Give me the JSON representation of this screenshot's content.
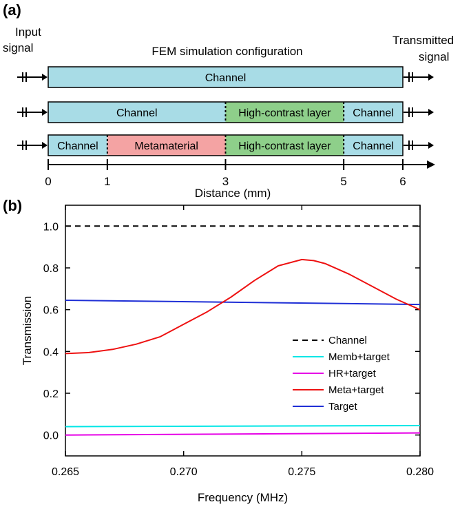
{
  "panel_a": {
    "panel_label": "(a)",
    "input_label_line1": "Input",
    "input_label_line2": "signal",
    "output_label_line1": "Transmitted",
    "output_label_line2": "signal",
    "config_title": "FEM simulation configuration",
    "rows": [
      {
        "segments": [
          {
            "label": "Channel",
            "start": 0,
            "end": 6,
            "color": "#a8dce6"
          }
        ]
      },
      {
        "segments": [
          {
            "label": "Channel",
            "start": 0,
            "end": 3,
            "color": "#a8dce6"
          },
          {
            "label": "High-contrast layer",
            "start": 3,
            "end": 5,
            "color": "#8ecf8a"
          },
          {
            "label": "Channel",
            "start": 5,
            "end": 6,
            "color": "#a8dce6"
          }
        ]
      },
      {
        "segments": [
          {
            "label": "Channel",
            "start": 0,
            "end": 1,
            "color": "#a8dce6"
          },
          {
            "label": "Metamaterial",
            "start": 1,
            "end": 3,
            "color": "#f4a3a3"
          },
          {
            "label": "High-contrast layer",
            "start": 3,
            "end": 5,
            "color": "#8ecf8a"
          },
          {
            "label": "Channel",
            "start": 5,
            "end": 6,
            "color": "#a8dce6"
          }
        ]
      }
    ],
    "distance_ticks": [
      "0",
      "1",
      "3",
      "5",
      "6"
    ],
    "distance_label": "Distance (mm)"
  },
  "panel_b": {
    "panel_label": "(b)"
  },
  "chart_data": {
    "type": "line",
    "xlabel": "Frequency (MHz)",
    "ylabel": "Transmission",
    "xlim": [
      0.265,
      0.28
    ],
    "ylim": [
      -0.1,
      1.1
    ],
    "xticks": [
      "0.265",
      "0.270",
      "0.275",
      "0.280"
    ],
    "yticks": [
      "0.0",
      "0.2",
      "0.4",
      "0.6",
      "0.8",
      "1.0"
    ],
    "legend_position": "lower-right",
    "series": [
      {
        "name": "Channel",
        "color": "#000000",
        "dash": true,
        "x": [
          0.265,
          0.28
        ],
        "y": [
          1.0,
          1.0
        ]
      },
      {
        "name": "Memb+target",
        "color": "#00e6e6",
        "x": [
          0.265,
          0.28
        ],
        "y": [
          0.04,
          0.045
        ]
      },
      {
        "name": "HR+target",
        "color": "#e600e6",
        "x": [
          0.265,
          0.28
        ],
        "y": [
          0.0,
          0.01
        ]
      },
      {
        "name": "Meta+target",
        "color": "#ee1111",
        "x": [
          0.265,
          0.266,
          0.267,
          0.268,
          0.269,
          0.27,
          0.271,
          0.272,
          0.273,
          0.274,
          0.275,
          0.2755,
          0.276,
          0.277,
          0.278,
          0.279,
          0.28
        ],
        "y": [
          0.39,
          0.395,
          0.41,
          0.435,
          0.47,
          0.53,
          0.59,
          0.66,
          0.74,
          0.81,
          0.84,
          0.835,
          0.82,
          0.77,
          0.71,
          0.65,
          0.6
        ]
      },
      {
        "name": "Target",
        "color": "#1f2fd6",
        "x": [
          0.265,
          0.28
        ],
        "y": [
          0.645,
          0.625
        ]
      }
    ]
  }
}
